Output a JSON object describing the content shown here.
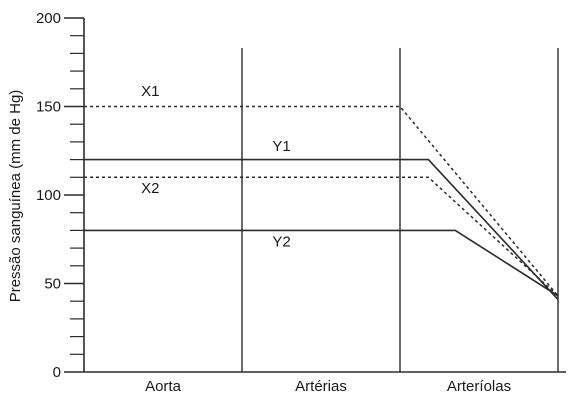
{
  "chart_data": {
    "type": "line",
    "title": "",
    "ylabel": "Pressão sanguínea (mm de Hg)",
    "xlabel": "",
    "ylim": [
      0,
      200
    ],
    "y_major_ticks": [
      0,
      50,
      100,
      150,
      200
    ],
    "y_minor_step": 10,
    "regions": [
      "Aorta",
      "Artérias",
      "Arteríolas"
    ],
    "series": [
      {
        "name": "X1",
        "style": "dotted",
        "points": [
          {
            "x": 0,
            "y": 150
          },
          {
            "x": 2,
            "y": 150
          },
          {
            "x": 3,
            "y": 43
          }
        ]
      },
      {
        "name": "Y1",
        "style": "solid",
        "points": [
          {
            "x": 0,
            "y": 120
          },
          {
            "x": 2.18,
            "y": 120
          },
          {
            "x": 3,
            "y": 41
          }
        ]
      },
      {
        "name": "X2",
        "style": "dotted",
        "points": [
          {
            "x": 0,
            "y": 110
          },
          {
            "x": 2.18,
            "y": 110
          },
          {
            "x": 3,
            "y": 43
          }
        ]
      },
      {
        "name": "Y2",
        "style": "solid",
        "points": [
          {
            "x": 0,
            "y": 80
          },
          {
            "x": 2.35,
            "y": 80
          },
          {
            "x": 3,
            "y": 43
          }
        ]
      }
    ],
    "series_labels": [
      {
        "text": "X1",
        "x": 0.42,
        "y": 156
      },
      {
        "text": "Y1",
        "x": 1.25,
        "y": 125
      },
      {
        "text": "X2",
        "x": 0.42,
        "y": 101
      },
      {
        "text": "Y2",
        "x": 1.25,
        "y": 71
      }
    ],
    "line_color": "#2b2b2b"
  }
}
